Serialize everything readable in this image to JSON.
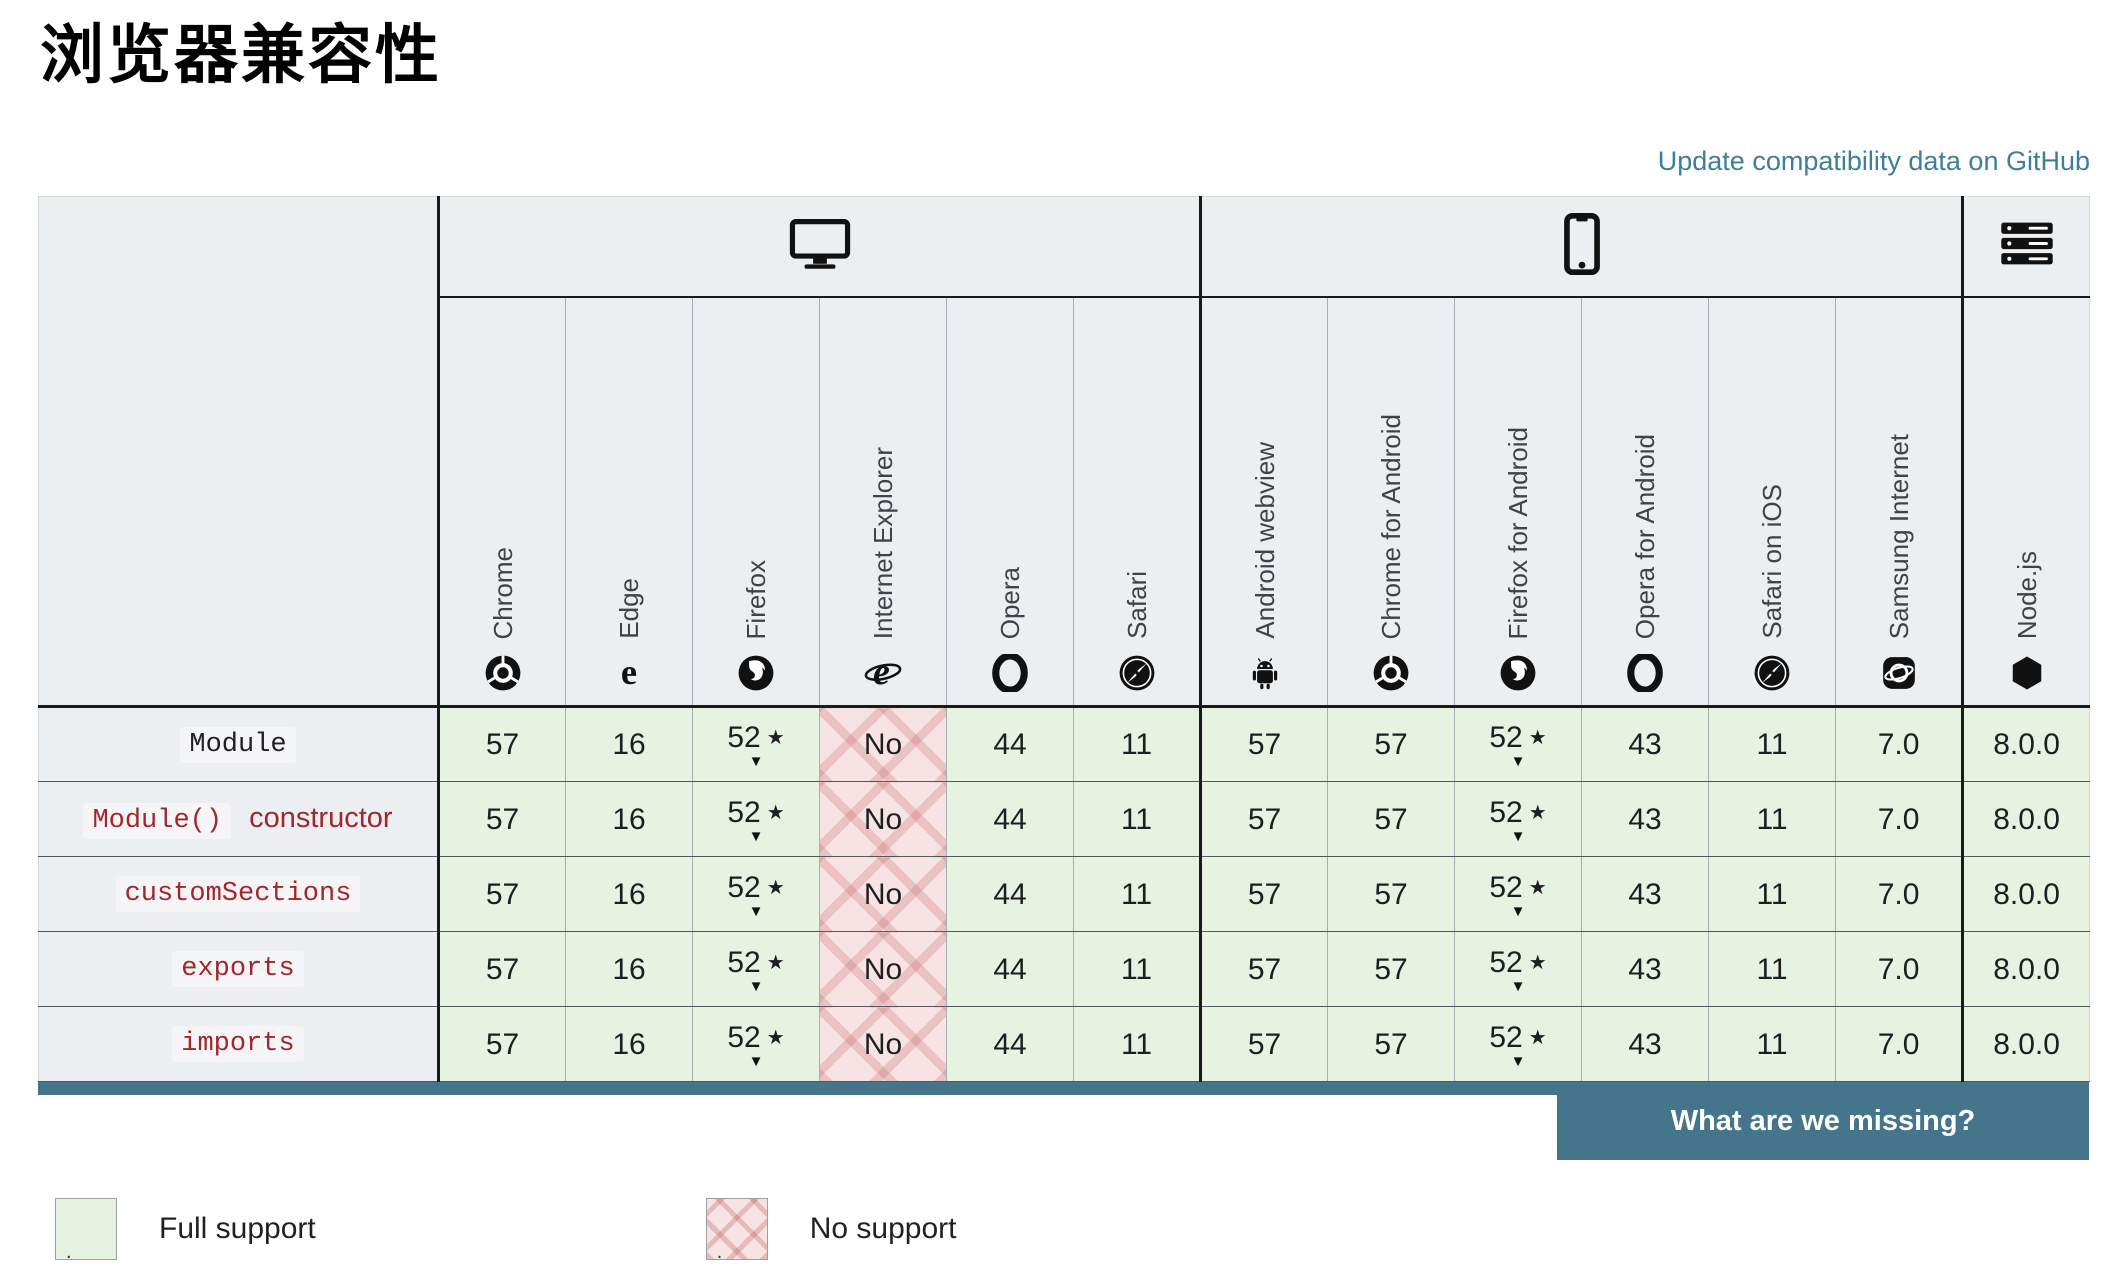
{
  "header": {
    "title": "浏览器兼容性",
    "update_link": "Update compatibility data on GitHub"
  },
  "colors": {
    "link_blue": "#3d7e9c",
    "teal": "#44758a",
    "full_bg": "#e6f3e1",
    "no_bg": "#f7e3e3",
    "head_bg": "#eceff1"
  },
  "table": {
    "platforms": [
      {
        "id": "desktop",
        "icon": "desktop-icon",
        "span": 6
      },
      {
        "id": "mobile",
        "icon": "mobile-icon",
        "span": 6
      },
      {
        "id": "server",
        "icon": "server-icon",
        "span": 1
      }
    ],
    "browsers": [
      {
        "name": "Chrome",
        "icon": "chrome-icon"
      },
      {
        "name": "Edge",
        "icon": "edge-icon"
      },
      {
        "name": "Firefox",
        "icon": "firefox-icon"
      },
      {
        "name": "Internet Explorer",
        "icon": "internet-explorer-icon"
      },
      {
        "name": "Opera",
        "icon": "opera-icon"
      },
      {
        "name": "Safari",
        "icon": "safari-icon"
      },
      {
        "name": "Android webview",
        "icon": "android-webview-icon"
      },
      {
        "name": "Chrome for Android",
        "icon": "chrome-icon"
      },
      {
        "name": "Firefox for Android",
        "icon": "firefox-icon"
      },
      {
        "name": "Opera for Android",
        "icon": "opera-icon"
      },
      {
        "name": "Safari on iOS",
        "icon": "safari-icon"
      },
      {
        "name": "Samsung Internet",
        "icon": "samsung-internet-icon"
      },
      {
        "name": "Node.js",
        "icon": "nodejs-icon"
      }
    ],
    "rows": [
      {
        "feature_code": "Module",
        "feature_suffix": "",
        "code_style": "plain",
        "cells": [
          {
            "text": "57",
            "support": "yes"
          },
          {
            "text": "16",
            "support": "yes"
          },
          {
            "text": "52",
            "support": "yes",
            "star": true,
            "note": true
          },
          {
            "text": "No",
            "support": "no"
          },
          {
            "text": "44",
            "support": "yes"
          },
          {
            "text": "11",
            "support": "yes"
          },
          {
            "text": "57",
            "support": "yes"
          },
          {
            "text": "57",
            "support": "yes"
          },
          {
            "text": "52",
            "support": "yes",
            "star": true,
            "note": true
          },
          {
            "text": "43",
            "support": "yes"
          },
          {
            "text": "11",
            "support": "yes"
          },
          {
            "text": "7.0",
            "support": "yes"
          },
          {
            "text": "8.0.0",
            "support": "yes"
          }
        ]
      },
      {
        "feature_code": "Module()",
        "feature_suffix": " constructor",
        "code_style": "red",
        "cells": [
          {
            "text": "57",
            "support": "yes"
          },
          {
            "text": "16",
            "support": "yes"
          },
          {
            "text": "52",
            "support": "yes",
            "star": true,
            "note": true
          },
          {
            "text": "No",
            "support": "no"
          },
          {
            "text": "44",
            "support": "yes"
          },
          {
            "text": "11",
            "support": "yes"
          },
          {
            "text": "57",
            "support": "yes"
          },
          {
            "text": "57",
            "support": "yes"
          },
          {
            "text": "52",
            "support": "yes",
            "star": true,
            "note": true
          },
          {
            "text": "43",
            "support": "yes"
          },
          {
            "text": "11",
            "support": "yes"
          },
          {
            "text": "7.0",
            "support": "yes"
          },
          {
            "text": "8.0.0",
            "support": "yes"
          }
        ]
      },
      {
        "feature_code": "customSections",
        "feature_suffix": "",
        "code_style": "red",
        "cells": [
          {
            "text": "57",
            "support": "yes"
          },
          {
            "text": "16",
            "support": "yes"
          },
          {
            "text": "52",
            "support": "yes",
            "star": true,
            "note": true
          },
          {
            "text": "No",
            "support": "no"
          },
          {
            "text": "44",
            "support": "yes"
          },
          {
            "text": "11",
            "support": "yes"
          },
          {
            "text": "57",
            "support": "yes"
          },
          {
            "text": "57",
            "support": "yes"
          },
          {
            "text": "52",
            "support": "yes",
            "star": true,
            "note": true
          },
          {
            "text": "43",
            "support": "yes"
          },
          {
            "text": "11",
            "support": "yes"
          },
          {
            "text": "7.0",
            "support": "yes"
          },
          {
            "text": "8.0.0",
            "support": "yes"
          }
        ]
      },
      {
        "feature_code": "exports",
        "feature_suffix": "",
        "code_style": "red",
        "cells": [
          {
            "text": "57",
            "support": "yes"
          },
          {
            "text": "16",
            "support": "yes"
          },
          {
            "text": "52",
            "support": "yes",
            "star": true,
            "note": true
          },
          {
            "text": "No",
            "support": "no"
          },
          {
            "text": "44",
            "support": "yes"
          },
          {
            "text": "11",
            "support": "yes"
          },
          {
            "text": "57",
            "support": "yes"
          },
          {
            "text": "57",
            "support": "yes"
          },
          {
            "text": "52",
            "support": "yes",
            "star": true,
            "note": true
          },
          {
            "text": "43",
            "support": "yes"
          },
          {
            "text": "11",
            "support": "yes"
          },
          {
            "text": "7.0",
            "support": "yes"
          },
          {
            "text": "8.0.0",
            "support": "yes"
          }
        ]
      },
      {
        "feature_code": "imports",
        "feature_suffix": "",
        "code_style": "red",
        "cells": [
          {
            "text": "57",
            "support": "yes"
          },
          {
            "text": "16",
            "support": "yes"
          },
          {
            "text": "52",
            "support": "yes",
            "star": true,
            "note": true
          },
          {
            "text": "No",
            "support": "no"
          },
          {
            "text": "44",
            "support": "yes"
          },
          {
            "text": "11",
            "support": "yes"
          },
          {
            "text": "57",
            "support": "yes"
          },
          {
            "text": "57",
            "support": "yes"
          },
          {
            "text": "52",
            "support": "yes",
            "star": true,
            "note": true
          },
          {
            "text": "43",
            "support": "yes"
          },
          {
            "text": "11",
            "support": "yes"
          },
          {
            "text": "7.0",
            "support": "yes"
          },
          {
            "text": "8.0.0",
            "support": "yes"
          }
        ]
      }
    ]
  },
  "footer": {
    "missing_button": "What are we missing?"
  },
  "legend": {
    "items": [
      {
        "type": "full",
        "label": "Full support",
        "icon": "full-support-swatch-icon"
      },
      {
        "type": "no",
        "label": "No support",
        "icon": "no-support-swatch-icon"
      }
    ]
  }
}
